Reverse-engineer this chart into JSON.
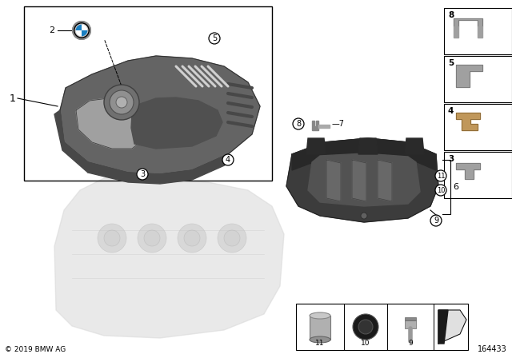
{
  "background_color": "#ffffff",
  "copyright_text": "© 2019 BMW AG",
  "diagram_id": "164433",
  "cover_color": "#606060",
  "cover_dark": "#3a3a3a",
  "cover_mid": "#505050",
  "cover_light": "#808080",
  "cover2_color": "#3c3c3c",
  "stripe_color": "#c0c0c0",
  "engine_color": "#cccccc",
  "figsize": [
    6.4,
    4.48
  ],
  "dpi": 100
}
